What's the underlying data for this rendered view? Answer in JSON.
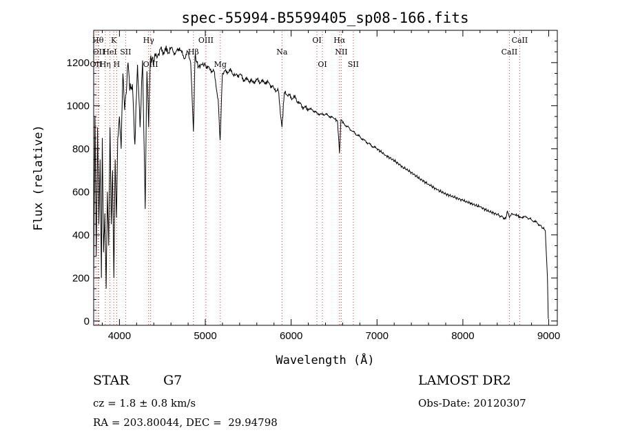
{
  "chart_data": {
    "type": "line",
    "title": "spec-55994-B5599405_sp08-166.fits",
    "xlabel": "Wavelength (Å)",
    "ylabel": "Flux (relative)",
    "xlim": [
      3700,
      9100
    ],
    "ylim": [
      -20,
      1350
    ],
    "xticks": [
      4000,
      5000,
      6000,
      7000,
      8000,
      9000
    ],
    "yticks": [
      0,
      200,
      400,
      600,
      800,
      1000,
      1200
    ],
    "grid": false,
    "series": [
      {
        "x": [
          3700,
          3715,
          3730,
          3745,
          3760,
          3775,
          3790,
          3800,
          3815,
          3830,
          3845,
          3860,
          3875,
          3890,
          3905,
          3920,
          3935,
          3950,
          3965,
          3980,
          4000,
          4020,
          4040,
          4060,
          4080,
          4100,
          4120,
          4150,
          4180,
          4210,
          4240,
          4270,
          4300,
          4320,
          4340,
          4360,
          4400,
          4450,
          4500,
          4550,
          4600,
          4650,
          4700,
          4750,
          4800,
          4830,
          4862,
          4880,
          4920,
          4960,
          5000,
          5050,
          5100,
          5150,
          5172,
          5200,
          5250,
          5300,
          5350,
          5400,
          5450,
          5500,
          5550,
          5600,
          5650,
          5700,
          5750,
          5800,
          5850,
          5893,
          5920,
          5950,
          6000,
          6050,
          6100,
          6150,
          6200,
          6250,
          6300,
          6350,
          6400,
          6450,
          6500,
          6540,
          6563,
          6580,
          6600,
          6650,
          6700,
          6750,
          6800,
          6850,
          6900,
          6950,
          7000,
          7100,
          7200,
          7300,
          7400,
          7500,
          7600,
          7700,
          7800,
          7900,
          8000,
          8100,
          8200,
          8300,
          8400,
          8498,
          8520,
          8542,
          8570,
          8600,
          8640,
          8662,
          8700,
          8750,
          8800,
          8850,
          8900,
          8960,
          8985,
          8995
        ],
        "y": [
          200,
          950,
          300,
          900,
          450,
          750,
          200,
          850,
          320,
          500,
          150,
          600,
          350,
          900,
          450,
          700,
          200,
          750,
          480,
          850,
          950,
          800,
          1150,
          980,
          1060,
          1200,
          1070,
          1100,
          820,
          1190,
          900,
          1210,
          520,
          1160,
          900,
          1220,
          1210,
          1240,
          1260,
          1250,
          1270,
          1240,
          1270,
          1220,
          1250,
          1200,
          880,
          1230,
          1180,
          1190,
          1190,
          1170,
          1160,
          1030,
          840,
          1150,
          1160,
          1160,
          1140,
          1145,
          1120,
          1120,
          1110,
          1120,
          1110,
          1110,
          1100,
          1080,
          1070,
          900,
          1060,
          1050,
          1040,
          1035,
          1010,
          990,
          985,
          980,
          965,
          960,
          960,
          950,
          940,
          930,
          780,
          935,
          920,
          905,
          885,
          870,
          855,
          840,
          825,
          810,
          800,
          770,
          745,
          715,
          690,
          660,
          635,
          610,
          590,
          575,
          560,
          545,
          530,
          510,
          495,
          475,
          510,
          480,
          500,
          495,
          490,
          480,
          485,
          480,
          470,
          460,
          445,
          420,
          200,
          10
        ],
        "line_color": "#000000"
      }
    ],
    "annotations": {
      "lines": [
        {
          "label": "OII",
          "x": 3727,
          "row": 2
        },
        {
          "label": "Hθ",
          "x": 3750,
          "row": 0
        },
        {
          "label": "OII",
          "x": 3760,
          "row": 1
        },
        {
          "label": "Hη",
          "x": 3835,
          "row": 2
        },
        {
          "label": "HeI",
          "x": 3889,
          "row": 1
        },
        {
          "label": "K",
          "x": 3934,
          "row": 0
        },
        {
          "label": "H",
          "x": 3968,
          "row": 2
        },
        {
          "label": "SII",
          "x": 4072,
          "row": 1
        },
        {
          "label": "Hγ",
          "x": 4340,
          "row": 0
        },
        {
          "label": "OIII",
          "x": 4363,
          "row": 2
        },
        {
          "label": "Hβ",
          "x": 4862,
          "row": 1
        },
        {
          "label": "OIII",
          "x": 5007,
          "row": 0
        },
        {
          "label": "Mg",
          "x": 5175,
          "row": 2
        },
        {
          "label": "Na",
          "x": 5893,
          "row": 1
        },
        {
          "label": "OI",
          "x": 6300,
          "row": 0
        },
        {
          "label": "OI",
          "x": 6364,
          "row": 2
        },
        {
          "label": "Hα",
          "x": 6563,
          "row": 0
        },
        {
          "label": "NII",
          "x": 6584,
          "row": 1
        },
        {
          "label": "SII",
          "x": 6724,
          "row": 2
        },
        {
          "label": "CaII",
          "x": 8542,
          "row": 1
        },
        {
          "label": "CaII",
          "x": 8662,
          "row": 0
        }
      ]
    }
  },
  "info": {
    "object_class": "STAR",
    "subclass": "G7",
    "survey": "LAMOST DR2",
    "redshift": "cz = 1.8 ± 0.8 km/s",
    "obs_date": "Obs-Date: 20120307",
    "coordinates": "RA = 203.80044, DEC =  29.94798"
  }
}
